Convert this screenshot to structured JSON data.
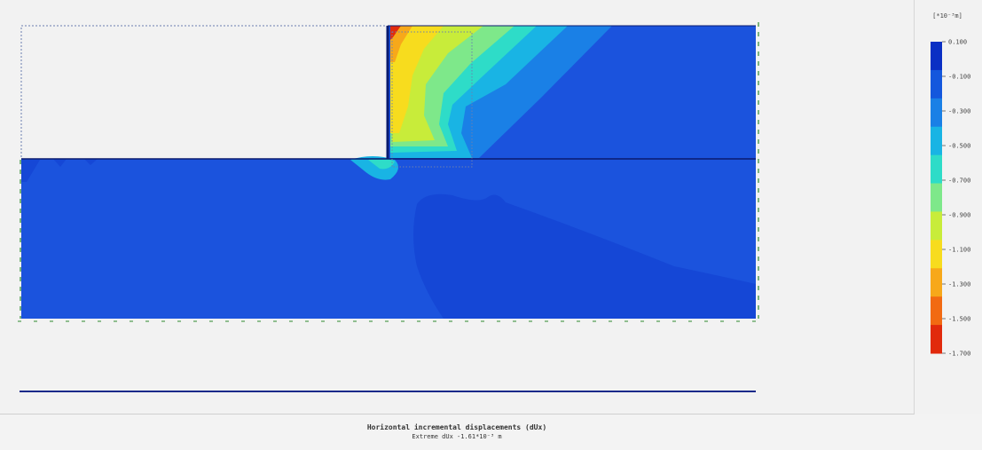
{
  "colors": {
    "background": "#f2f2f2",
    "model_base": "#1b53dd",
    "deep_blue": "#1547d6",
    "wall": "#0a1a6e",
    "mesh_dash": "#6a7fb0",
    "boundary_green": "#2e8b2e",
    "bottom_line": "#1a2a8a"
  },
  "legend": {
    "unit_label": "[*10⁻³m]",
    "ticks": [
      "0.100",
      "-0.100",
      "-0.300",
      "-0.500",
      "-0.700",
      "-0.900",
      "-1.100",
      "-1.300",
      "-1.500",
      "-1.700"
    ],
    "colors": [
      "#0a2fc4",
      "#1457dd",
      "#1a80e6",
      "#19b4e4",
      "#2edcc8",
      "#7ee88a",
      "#c8ec3a",
      "#f7dc1e",
      "#f7a81a",
      "#f26a12",
      "#e12a0c"
    ]
  },
  "caption": {
    "title": "Horizontal incremental displacements (dUx)",
    "subtitle": "Extreme dUx -1.61*10⁻³ m"
  }
}
